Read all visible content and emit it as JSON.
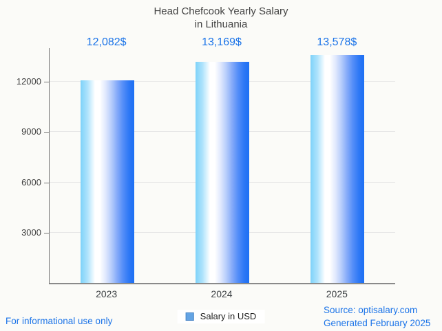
{
  "title": {
    "line1": "Head Chefcook Yearly Salary",
    "line2": "in Lithuania"
  },
  "chart_data": {
    "type": "bar",
    "title": "Head Chefcook Yearly Salary in Lithuania",
    "categories": [
      "2023",
      "2024",
      "2025"
    ],
    "values": [
      12082,
      13169,
      13578
    ],
    "value_labels": [
      "12,082$",
      "13,169$",
      "13,578$"
    ],
    "series": [
      {
        "name": "Salary in USD",
        "values": [
          12082,
          13169,
          13578
        ]
      }
    ],
    "xlabel": "",
    "ylabel": "",
    "y_ticks": [
      3000,
      6000,
      9000,
      12000
    ],
    "ylim": [
      0,
      14000
    ],
    "grid": true,
    "legend_position": "bottom",
    "bar_gradient": [
      "#7ed2f9",
      "#ffffff",
      "#1c6ff4"
    ],
    "value_label_color": "#1a73e8"
  },
  "legend": {
    "label": "Salary in USD",
    "swatch_color": "#64a4e4"
  },
  "footer": {
    "disclaimer": "For informational use only",
    "source": "Source: optisalary.com",
    "generated": "Generated February 2025"
  },
  "colors": {
    "background": "#fbfbf8",
    "title_text": "#424242",
    "axis_text": "#3d3d3d",
    "accent_blue": "#1a73e8",
    "gridline": "#e7e7e7",
    "axis_line": "#757575"
  }
}
